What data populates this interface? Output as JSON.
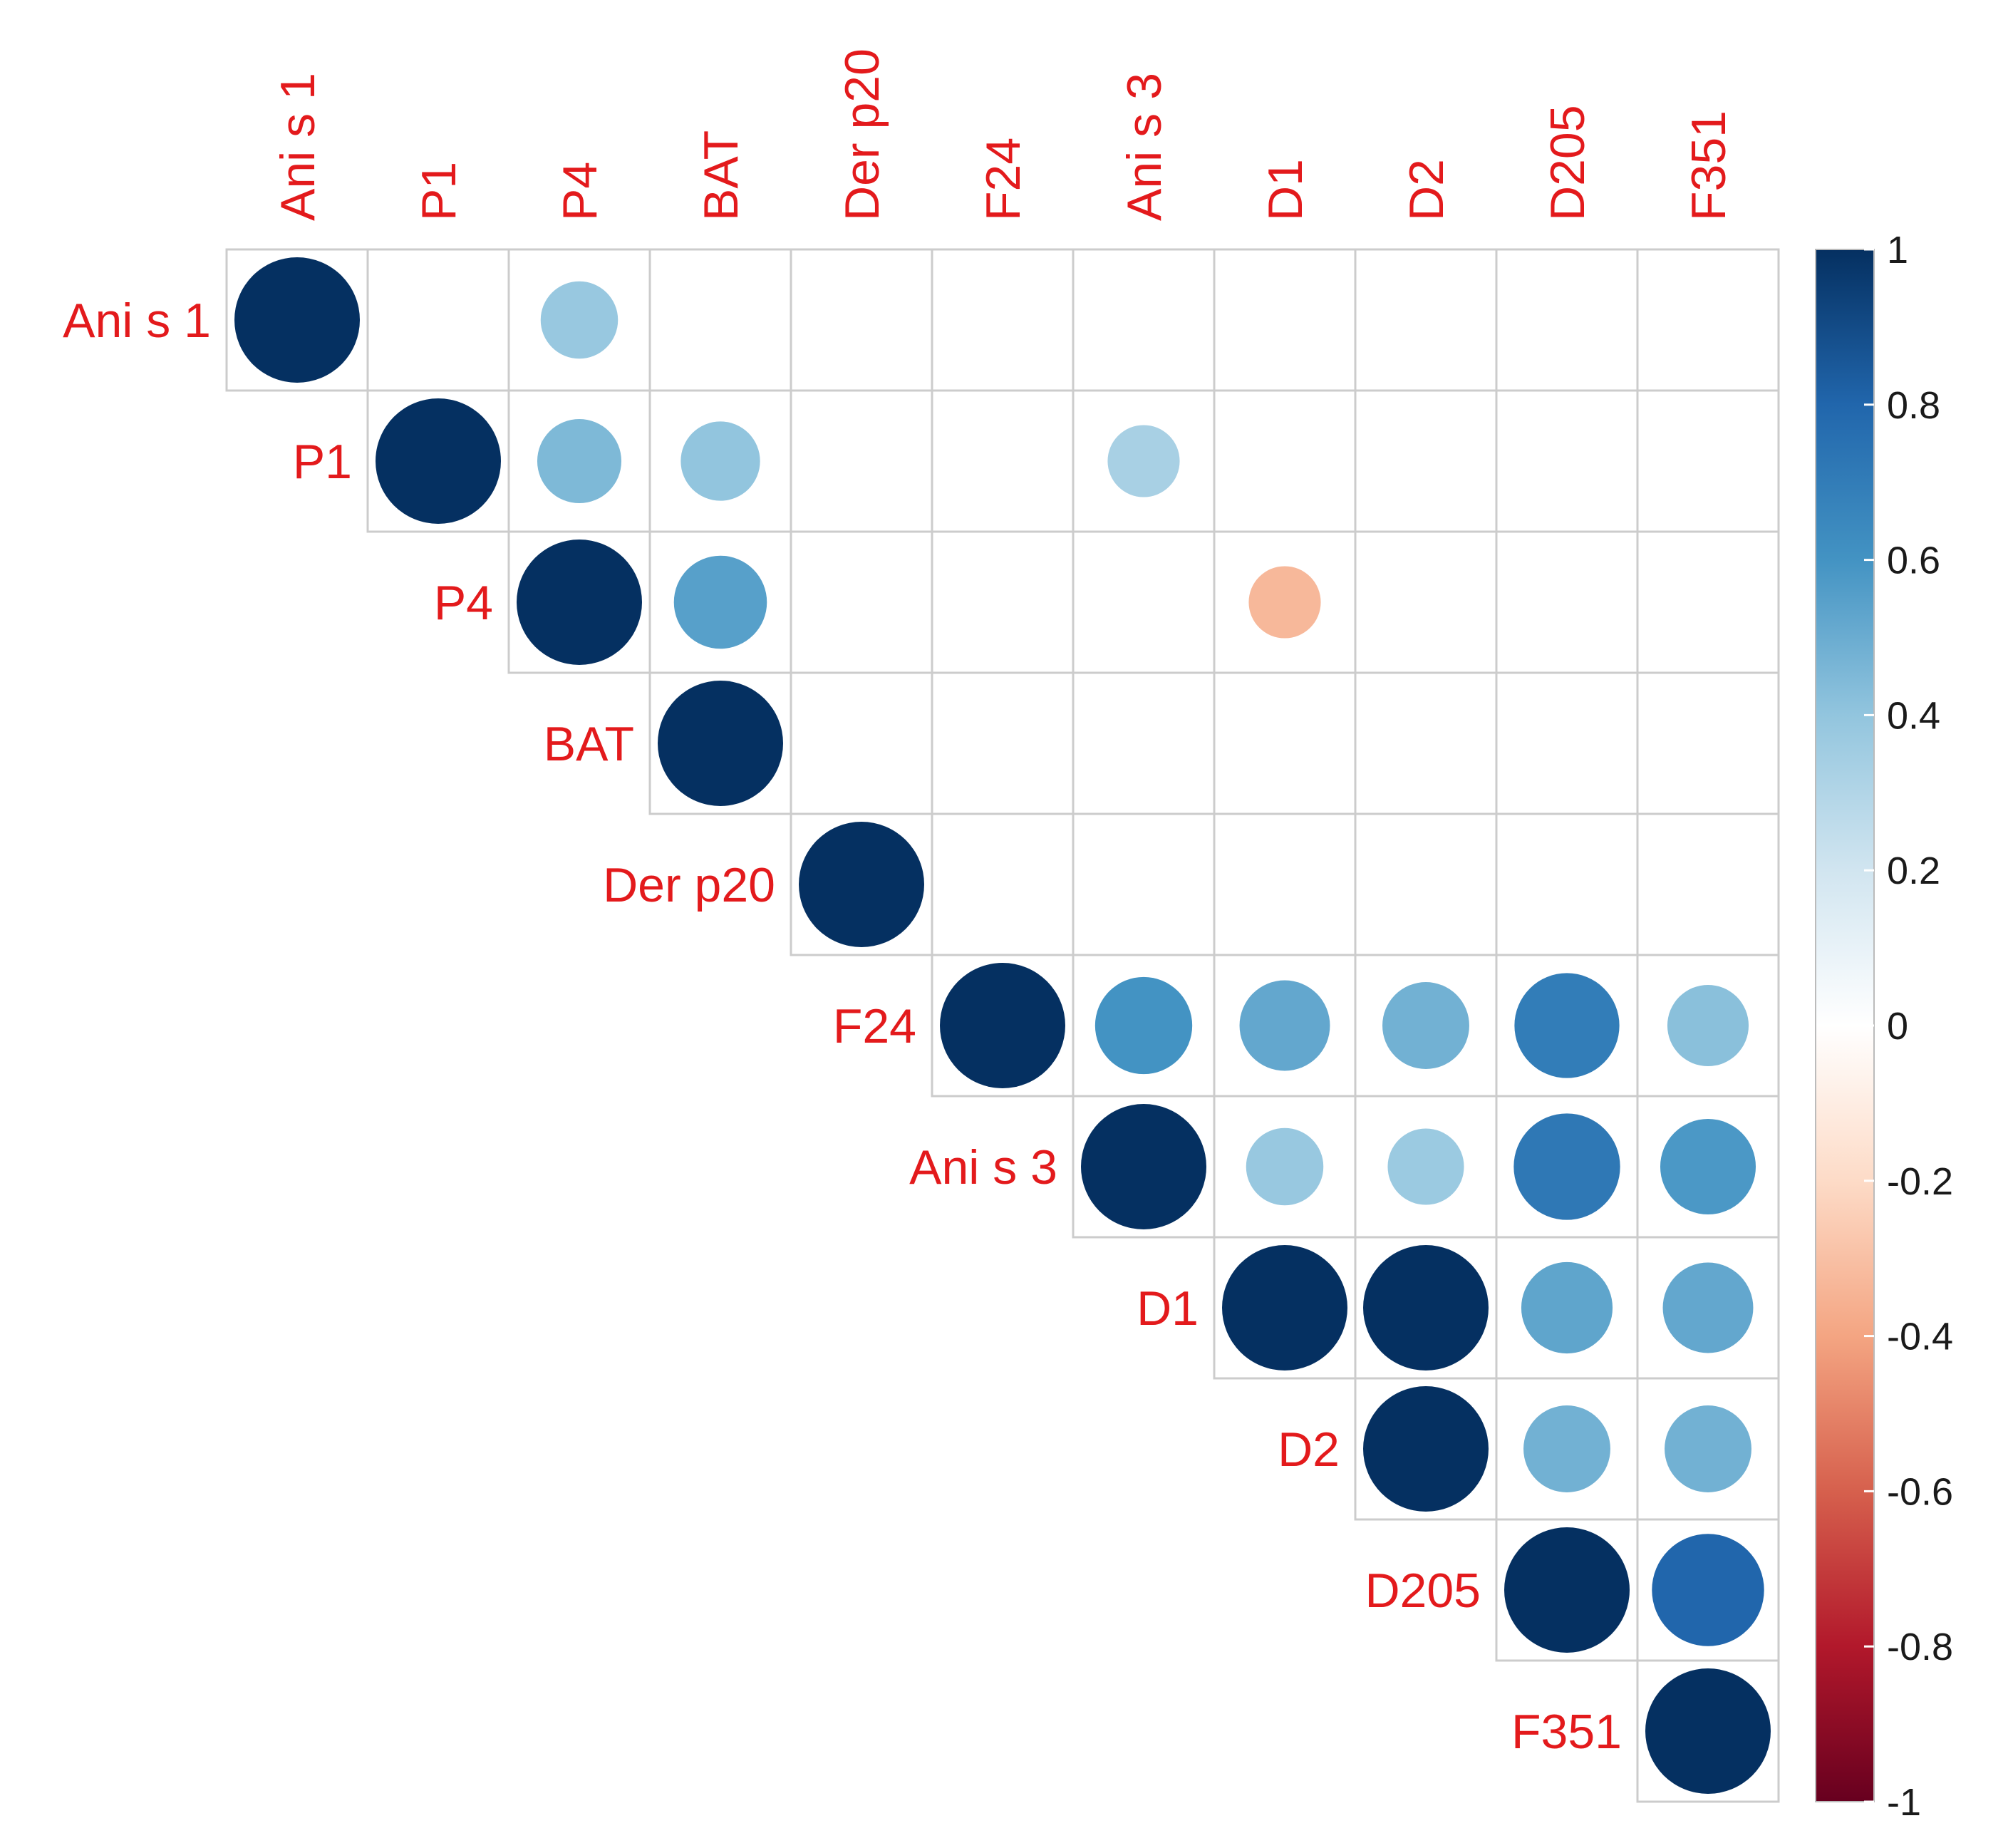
{
  "chart_data": {
    "type": "heatmap",
    "subtype": "correlation-upper-triangle-circles",
    "variables": [
      "Ani s 1",
      "P1",
      "P4",
      "BAT",
      "Der p20",
      "F24",
      "Ani s 3",
      "D1",
      "D2",
      "D205",
      "F351"
    ],
    "matrix": [
      [
        1,
        null,
        0.38,
        null,
        null,
        null,
        null,
        null,
        null,
        null,
        null
      ],
      [
        null,
        1,
        0.45,
        0.4,
        null,
        null,
        0.33,
        null,
        null,
        null,
        null
      ],
      [
        0.38,
        0.45,
        1,
        0.55,
        null,
        null,
        null,
        -0.33,
        null,
        null,
        null
      ],
      [
        null,
        0.4,
        0.55,
        1,
        null,
        null,
        null,
        null,
        null,
        null,
        null
      ],
      [
        null,
        null,
        null,
        null,
        1,
        null,
        null,
        null,
        null,
        null,
        null
      ],
      [
        null,
        null,
        null,
        null,
        null,
        1,
        0.6,
        0.52,
        0.48,
        0.7,
        0.42
      ],
      [
        null,
        0.33,
        null,
        null,
        null,
        0.6,
        1,
        0.38,
        0.37,
        0.72,
        0.58
      ],
      [
        null,
        null,
        -0.33,
        null,
        null,
        0.52,
        0.38,
        1,
        1,
        0.53,
        0.52
      ],
      [
        null,
        null,
        null,
        null,
        null,
        0.48,
        0.37,
        1,
        1,
        0.48,
        0.48
      ],
      [
        null,
        null,
        null,
        null,
        null,
        0.7,
        0.72,
        0.53,
        0.48,
        1,
        0.8
      ],
      [
        null,
        null,
        null,
        null,
        null,
        0.42,
        0.58,
        0.52,
        0.48,
        0.8,
        1
      ]
    ],
    "colorbar": {
      "range": [
        -1,
        1
      ],
      "ticks": [
        "1",
        "0.8",
        "0.6",
        "0.4",
        "0.2",
        "0",
        "-0.2",
        "-0.4",
        "-0.6",
        "-0.8",
        "-1"
      ],
      "tick_values": [
        1,
        0.8,
        0.6,
        0.4,
        0.2,
        0,
        -0.2,
        -0.4,
        -0.6,
        -0.8,
        -1
      ],
      "placement": "right"
    },
    "label_color": "#e31a1c",
    "palette": [
      "#67001f",
      "#b2182b",
      "#d6604d",
      "#f4a582",
      "#fddbc7",
      "#ffffff",
      "#d1e5f0",
      "#92c5de",
      "#4393c3",
      "#2166ac",
      "#053061"
    ],
    "grid": true
  }
}
